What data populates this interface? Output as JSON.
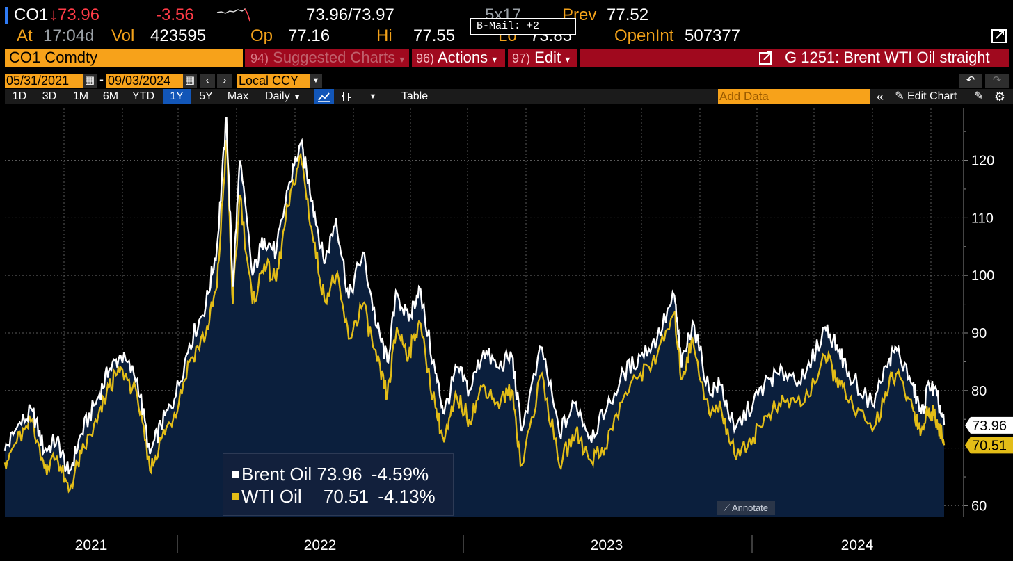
{
  "quote": {
    "ticker": "CO1",
    "last": "73.96",
    "change": "-3.56",
    "bid_ask": "73.96/73.97",
    "size": "5x17",
    "prev_label": "Prev",
    "prev": "77.52",
    "at_label": "At",
    "time": "17:04d",
    "vol_label": "Vol",
    "volume": "423595",
    "open_label": "Op",
    "open": "77.16",
    "high_label": "Hi",
    "high": "77.55",
    "low_label": "Lo",
    "low": "73.85",
    "openint_label": "OpenInt",
    "open_interest": "507377"
  },
  "bmail": "B-Mail: +2",
  "command_bar": {
    "security": "CO1 Comdty",
    "suggested_num": "94)",
    "suggested": "Suggested Charts",
    "actions_num": "96)",
    "actions": "Actions",
    "edit_num": "97)",
    "edit": "Edit",
    "chart_title": "G 1251: Brent WTI Oil straight"
  },
  "date_range": {
    "start": "05/31/2021",
    "separator": "-",
    "end": "09/03/2024",
    "currency": "Local CCY"
  },
  "toolbar": {
    "periods": [
      "1D",
      "3D",
      "1M",
      "6M",
      "YTD",
      "1Y",
      "5Y",
      "Max"
    ],
    "active_period": "1Y",
    "frequency": "Daily",
    "table": "Table",
    "add_data_placeholder": "Add Data",
    "edit_chart": "Edit Chart"
  },
  "legend": {
    "brent_name": "Brent Oil",
    "brent_value": "73.96",
    "brent_change": "-4.59%",
    "wti_name": "WTI Oil",
    "wti_value": "70.51",
    "wti_change": "-4.13%"
  },
  "annotate": "Annotate",
  "colors": {
    "brent": "#ffffff",
    "wti": "#e3bd17",
    "area": "#0b1f3d",
    "bloomberg_orange": "#f7a21a",
    "bloomberg_red": "#a0091e"
  },
  "chart_data": {
    "type": "line",
    "title": "Brent WTI Oil straight",
    "x_axis": {
      "labels": [
        "2021",
        "2022",
        "2023",
        "2024"
      ],
      "range": [
        "2021-05-31",
        "2024-09-03"
      ]
    },
    "y_axis": {
      "ticks": [
        60,
        70,
        80,
        90,
        100,
        110,
        120
      ],
      "tick_labels": [
        "60",
        "70",
        "80",
        "90",
        "100",
        "110",
        "120"
      ],
      "range": [
        58,
        129
      ],
      "side": "right"
    },
    "grid": true,
    "series": [
      {
        "name": "Brent Oil",
        "last": 73.96,
        "last_label": "73.96",
        "change_pct": -4.59,
        "points": [
          [
            "2021-05-31",
            69.5
          ],
          [
            "2021-06-15",
            73.5
          ],
          [
            "2021-07-05",
            76.5
          ],
          [
            "2021-07-20",
            69.5
          ],
          [
            "2021-08-05",
            71.5
          ],
          [
            "2021-08-20",
            65.5
          ],
          [
            "2021-09-05",
            72.5
          ],
          [
            "2021-09-25",
            78.5
          ],
          [
            "2021-10-10",
            83.5
          ],
          [
            "2021-10-25",
            86.0
          ],
          [
            "2021-11-15",
            82.0
          ],
          [
            "2021-12-01",
            69.0
          ],
          [
            "2021-12-15",
            74.0
          ],
          [
            "2022-01-01",
            78.5
          ],
          [
            "2022-01-20",
            88.0
          ],
          [
            "2022-02-10",
            95.0
          ],
          [
            "2022-02-24",
            105.0
          ],
          [
            "2022-03-08",
            127.5
          ],
          [
            "2022-03-16",
            98.0
          ],
          [
            "2022-03-25",
            120.0
          ],
          [
            "2022-04-10",
            100.0
          ],
          [
            "2022-04-25",
            106.5
          ],
          [
            "2022-05-10",
            104.0
          ],
          [
            "2022-05-25",
            115.0
          ],
          [
            "2022-06-10",
            123.0
          ],
          [
            "2022-06-25",
            113.0
          ],
          [
            "2022-07-10",
            102.0
          ],
          [
            "2022-07-25",
            110.0
          ],
          [
            "2022-08-10",
            96.0
          ],
          [
            "2022-08-28",
            104.0
          ],
          [
            "2022-09-15",
            91.0
          ],
          [
            "2022-09-28",
            85.0
          ],
          [
            "2022-10-10",
            97.0
          ],
          [
            "2022-10-25",
            92.0
          ],
          [
            "2022-11-07",
            98.0
          ],
          [
            "2022-11-28",
            83.0
          ],
          [
            "2022-12-09",
            76.0
          ],
          [
            "2022-12-25",
            84.0
          ],
          [
            "2023-01-10",
            80.0
          ],
          [
            "2023-01-28",
            87.0
          ],
          [
            "2023-02-15",
            84.0
          ],
          [
            "2023-03-05",
            86.0
          ],
          [
            "2023-03-17",
            73.0
          ],
          [
            "2023-04-12",
            87.5
          ],
          [
            "2023-05-04",
            72.5
          ],
          [
            "2023-05-25",
            78.0
          ],
          [
            "2023-06-12",
            72.0
          ],
          [
            "2023-07-01",
            76.0
          ],
          [
            "2023-07-25",
            83.0
          ],
          [
            "2023-08-15",
            86.0
          ],
          [
            "2023-09-05",
            89.0
          ],
          [
            "2023-09-27",
            96.5
          ],
          [
            "2023-10-06",
            84.0
          ],
          [
            "2023-10-20",
            92.0
          ],
          [
            "2023-11-10",
            80.0
          ],
          [
            "2023-11-25",
            81.0
          ],
          [
            "2023-12-12",
            73.0
          ],
          [
            "2024-01-05",
            78.0
          ],
          [
            "2024-01-25",
            82.0
          ],
          [
            "2024-02-15",
            83.0
          ],
          [
            "2024-03-10",
            82.0
          ],
          [
            "2024-04-05",
            91.0
          ],
          [
            "2024-04-20",
            88.0
          ],
          [
            "2024-05-05",
            83.0
          ],
          [
            "2024-06-04",
            77.5
          ],
          [
            "2024-06-25",
            85.5
          ],
          [
            "2024-07-05",
            87.0
          ],
          [
            "2024-07-25",
            81.0
          ],
          [
            "2024-08-05",
            76.0
          ],
          [
            "2024-08-15",
            81.0
          ],
          [
            "2024-08-25",
            79.0
          ],
          [
            "2024-09-03",
            73.96
          ]
        ]
      },
      {
        "name": "WTI Oil",
        "last": 70.51,
        "last_label": "70.51",
        "change_pct": -4.13,
        "points": [
          [
            "2021-05-31",
            67.5
          ],
          [
            "2021-06-15",
            71.0
          ],
          [
            "2021-07-05",
            75.0
          ],
          [
            "2021-07-20",
            66.5
          ],
          [
            "2021-08-05",
            68.5
          ],
          [
            "2021-08-20",
            62.5
          ],
          [
            "2021-09-05",
            69.0
          ],
          [
            "2021-09-25",
            74.5
          ],
          [
            "2021-10-10",
            80.5
          ],
          [
            "2021-10-25",
            84.0
          ],
          [
            "2021-11-15",
            79.0
          ],
          [
            "2021-12-01",
            66.0
          ],
          [
            "2021-12-15",
            71.5
          ],
          [
            "2022-01-01",
            76.0
          ],
          [
            "2022-01-20",
            85.0
          ],
          [
            "2022-02-10",
            90.0
          ],
          [
            "2022-02-24",
            98.0
          ],
          [
            "2022-03-08",
            123.5
          ],
          [
            "2022-03-16",
            95.0
          ],
          [
            "2022-03-25",
            114.0
          ],
          [
            "2022-04-10",
            95.0
          ],
          [
            "2022-04-25",
            102.0
          ],
          [
            "2022-05-10",
            99.0
          ],
          [
            "2022-05-25",
            112.0
          ],
          [
            "2022-06-10",
            121.0
          ],
          [
            "2022-06-25",
            107.0
          ],
          [
            "2022-07-10",
            96.0
          ],
          [
            "2022-07-25",
            100.0
          ],
          [
            "2022-08-10",
            89.0
          ],
          [
            "2022-08-28",
            95.0
          ],
          [
            "2022-09-15",
            85.0
          ],
          [
            "2022-09-28",
            79.0
          ],
          [
            "2022-10-10",
            91.0
          ],
          [
            "2022-10-25",
            86.0
          ],
          [
            "2022-11-07",
            92.0
          ],
          [
            "2022-11-28",
            77.0
          ],
          [
            "2022-12-09",
            71.0
          ],
          [
            "2022-12-25",
            79.0
          ],
          [
            "2023-01-10",
            75.0
          ],
          [
            "2023-01-28",
            81.0
          ],
          [
            "2023-02-15",
            78.0
          ],
          [
            "2023-03-05",
            80.0
          ],
          [
            "2023-03-17",
            67.0
          ],
          [
            "2023-04-12",
            83.0
          ],
          [
            "2023-05-04",
            67.0
          ],
          [
            "2023-05-25",
            73.0
          ],
          [
            "2023-06-12",
            68.0
          ],
          [
            "2023-07-01",
            70.0
          ],
          [
            "2023-07-25",
            79.0
          ],
          [
            "2023-08-15",
            83.0
          ],
          [
            "2023-09-05",
            86.0
          ],
          [
            "2023-09-27",
            93.5
          ],
          [
            "2023-10-06",
            82.0
          ],
          [
            "2023-10-20",
            89.0
          ],
          [
            "2023-11-10",
            76.0
          ],
          [
            "2023-11-25",
            77.0
          ],
          [
            "2023-12-12",
            69.0
          ],
          [
            "2024-01-05",
            72.0
          ],
          [
            "2024-01-25",
            76.0
          ],
          [
            "2024-02-15",
            78.0
          ],
          [
            "2024-03-10",
            78.0
          ],
          [
            "2024-04-05",
            86.0
          ],
          [
            "2024-04-20",
            82.0
          ],
          [
            "2024-05-05",
            78.0
          ],
          [
            "2024-06-04",
            73.0
          ],
          [
            "2024-06-25",
            81.0
          ],
          [
            "2024-07-05",
            83.0
          ],
          [
            "2024-07-25",
            77.0
          ],
          [
            "2024-08-05",
            73.0
          ],
          [
            "2024-08-15",
            77.0
          ],
          [
            "2024-08-25",
            75.0
          ],
          [
            "2024-09-03",
            70.51
          ]
        ]
      }
    ]
  }
}
